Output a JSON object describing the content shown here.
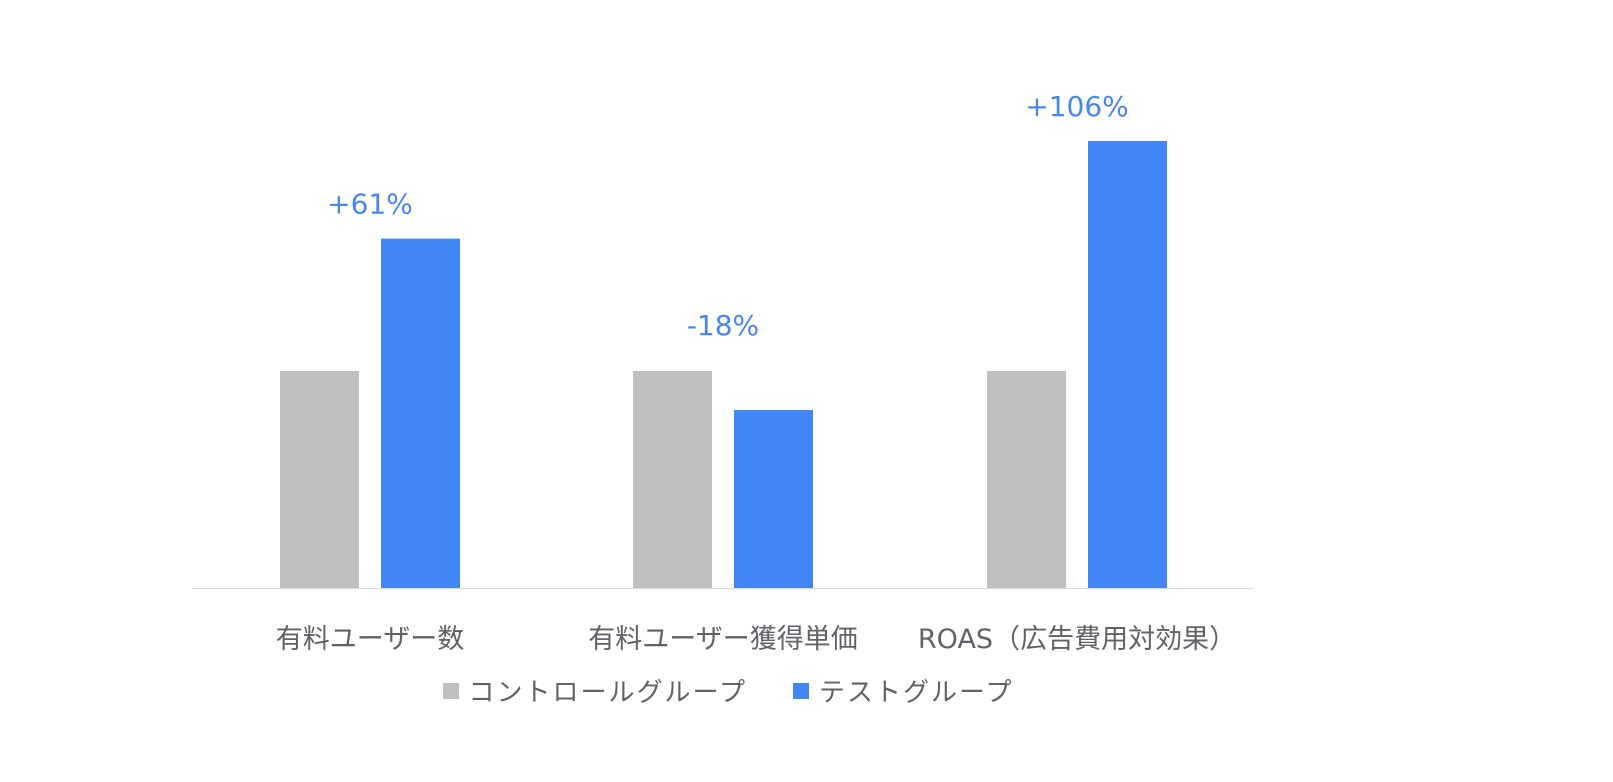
{
  "chart_data": {
    "type": "bar",
    "categories": [
      "有料ユーザー数",
      "有料ユーザー獲得単価",
      "ROAS（広告費用対効果）"
    ],
    "series": [
      {
        "name": "コントロールグループ",
        "values": [
          100,
          100,
          100
        ],
        "color": "#bfbfbf"
      },
      {
        "name": "テストグループ",
        "values": [
          161,
          82,
          206
        ],
        "color": "#4285f4"
      }
    ],
    "data_labels": [
      "+61%",
      "-18%",
      "+106%"
    ],
    "legend_position": "bottom",
    "grid": false,
    "ylim": [
      0,
      215
    ]
  }
}
